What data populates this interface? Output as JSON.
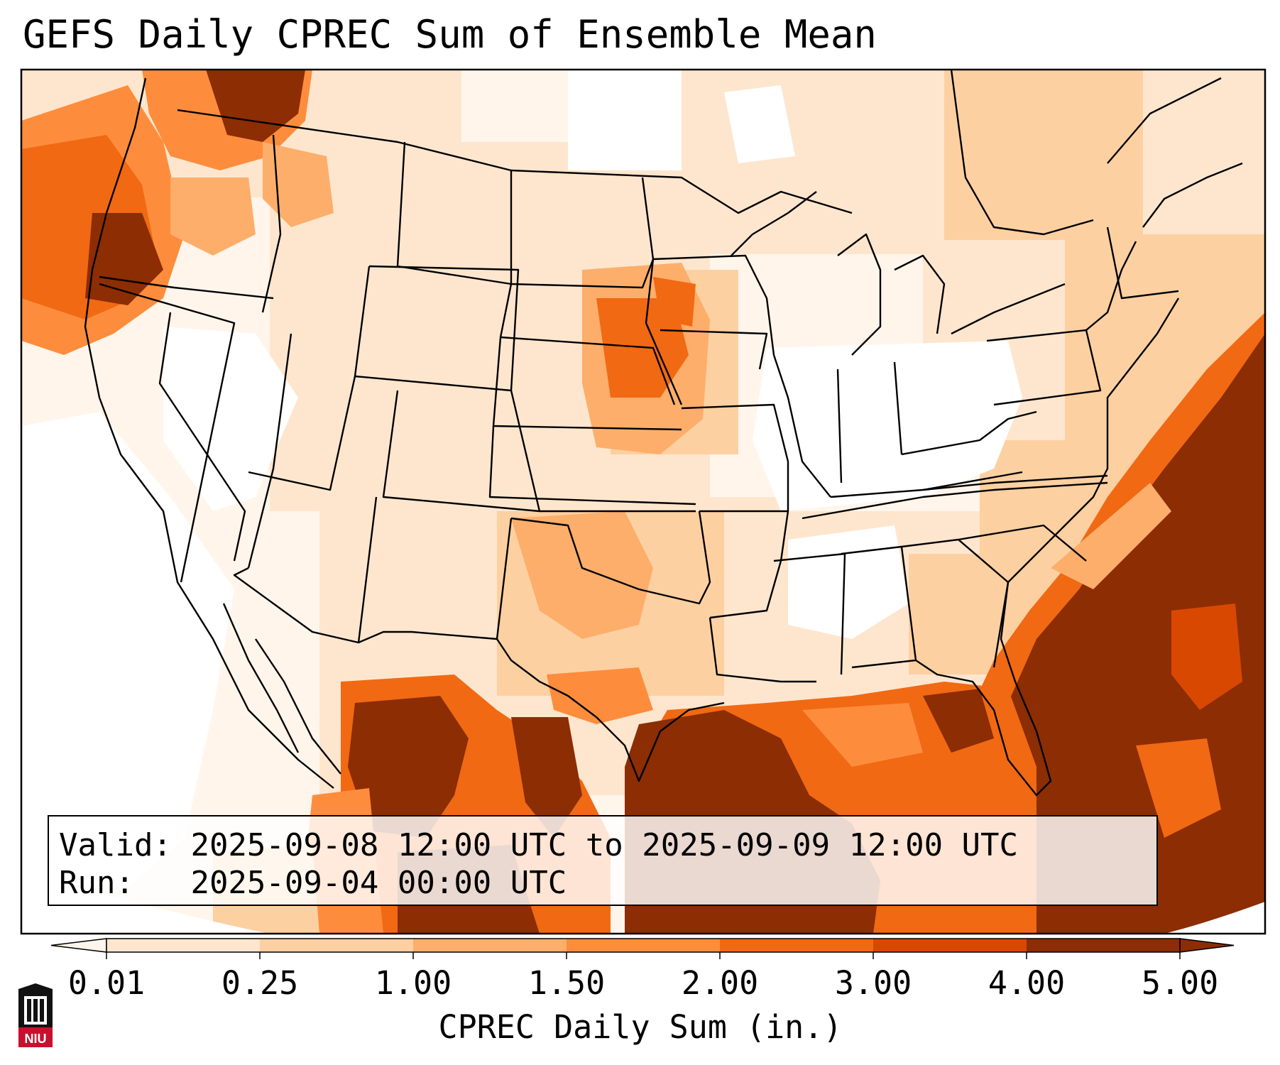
{
  "title": "GEFS Daily CPREC Sum of Ensemble Mean",
  "info": {
    "valid_label": "Valid:",
    "valid_value": "2025-09-08 12:00 UTC to 2025-09-09 12:00 UTC",
    "run_label": "Run:",
    "run_value": "2025-09-04 00:00 UTC"
  },
  "colorbar": {
    "label": "CPREC Daily Sum (in.)",
    "ticks": [
      "0.01",
      "0.25",
      "1.00",
      "1.50",
      "2.00",
      "3.00",
      "4.00",
      "5.00"
    ],
    "colors": [
      "#fff5eb",
      "#fee6ce",
      "#fdd0a2",
      "#fdae6b",
      "#fd8d3c",
      "#f16913",
      "#d94801",
      "#8c2d04"
    ],
    "extend": "both"
  },
  "logo": {
    "text": "NIU",
    "accent": "#c8102e"
  }
}
